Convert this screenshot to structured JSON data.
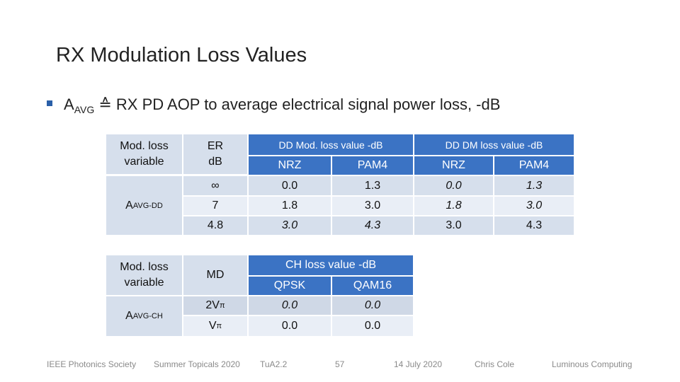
{
  "slide": {
    "title": "RX Modulation Loss Values",
    "bullet": {
      "lead": "A",
      "lead_sub": "AVG",
      "symbol": " ≙ ",
      "text": "RX PD AOP to average electrical signal power loss, -dB"
    }
  },
  "table1": {
    "h_modloss": "Mod. loss variable",
    "h_er": "ER dB",
    "h_dd_group": "DD Mod. loss value -dB",
    "h_dm_group": "DD DM loss value -dB",
    "sub_nrz": "NRZ",
    "sub_pam4": "PAM4",
    "row_var_main": "A",
    "row_var_sub": "AVG-DD",
    "rows": [
      {
        "er": "∞",
        "dd_nrz": "0.0",
        "dd_pam4": "1.3",
        "dm_nrz": "0.0",
        "dm_pam4": "1.3"
      },
      {
        "er": "7",
        "dd_nrz": "1.8",
        "dd_pam4": "3.0",
        "dm_nrz": "1.8",
        "dm_pam4": "3.0"
      },
      {
        "er": "4.8",
        "dd_nrz": "3.0",
        "dd_pam4": "4.3",
        "dm_nrz": "3.0",
        "dm_pam4": "4.3"
      }
    ]
  },
  "table2": {
    "h_modloss": "Mod. loss variable",
    "h_md": "MD",
    "h_ch_group": "CH loss value -dB",
    "sub_qpsk": "QPSK",
    "sub_qam16": "QAM16",
    "row_var_main": "A",
    "row_var_sub": "AVG-CH",
    "rows": [
      {
        "md_main": "2V",
        "md_sub": "π",
        "qpsk": "0.0",
        "qam16": "0.0"
      },
      {
        "md_main": "V",
        "md_sub": "π",
        "qpsk": "0.0",
        "qam16": "0.0"
      }
    ]
  },
  "footer": {
    "society": "IEEE Photonics Society",
    "event": "Summer Topicals 2020",
    "session": "TuA2.2",
    "page": "57",
    "date": "14 July 2020",
    "author": "Chris Cole",
    "company": "Luminous Computing"
  },
  "colors": {
    "header_blue": "#3b73c4",
    "cell_light": "#d6dfec",
    "bullet_marker": "#2a5fa8"
  }
}
